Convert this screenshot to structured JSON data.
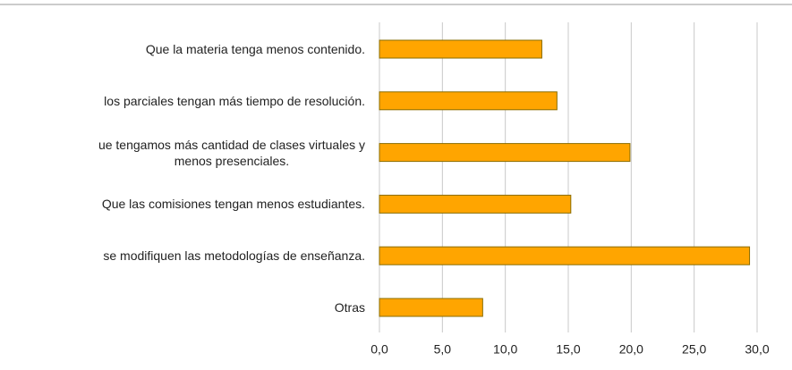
{
  "chart_data": {
    "type": "bar",
    "orientation": "horizontal",
    "categories": [
      "Que la materia tenga menos contenido.",
      "los parciales tengan más tiempo de resolución.",
      "ue tengamos más cantidad de clases virtuales y\nmenos presenciales.",
      "Que las comisiones tengan menos estudiantes.",
      "se modifiquen las metodologías de enseñanza.",
      "Otras"
    ],
    "values": [
      12.9,
      14.1,
      19.9,
      15.2,
      29.4,
      8.2
    ],
    "color": "#ffa500",
    "xlim": [
      0,
      30
    ],
    "xticks": [
      {
        "value": 0,
        "label": "0,0"
      },
      {
        "value": 5,
        "label": "5,0"
      },
      {
        "value": 10,
        "label": "10,0"
      },
      {
        "value": 15,
        "label": "15,0"
      },
      {
        "value": 20,
        "label": "20,0"
      },
      {
        "value": 25,
        "label": "25,0"
      },
      {
        "value": 30,
        "label": "30,0"
      }
    ],
    "grid": true
  }
}
